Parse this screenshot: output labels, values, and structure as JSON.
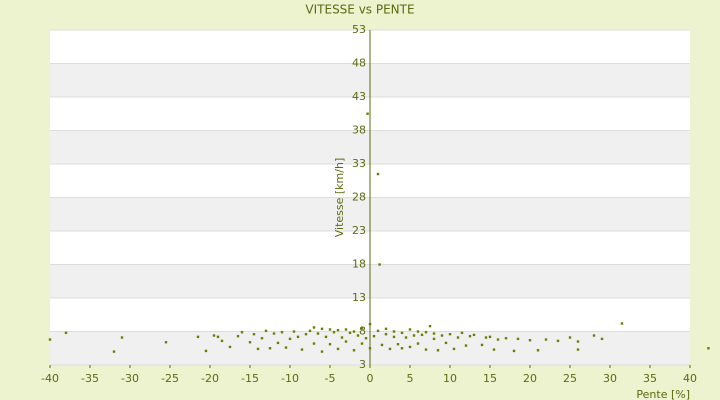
{
  "chart_data": {
    "type": "scatter",
    "title": "VITESSE vs PENTE",
    "x_label": "Pente [%]",
    "y_label": "Vitesse [km/h]",
    "color": "#6b7d00",
    "xlim": [
      -40,
      40
    ],
    "xticks": [
      -40,
      -35,
      -30,
      -25,
      -20,
      -15,
      -10,
      -5,
      0,
      5,
      10,
      15,
      20,
      25,
      30,
      35,
      40
    ],
    "ylim": [
      3,
      53
    ],
    "yticks": [
      3,
      8,
      13,
      18,
      23,
      28,
      33,
      38,
      43,
      48,
      53
    ],
    "x": [
      -40,
      -38,
      -32,
      -31,
      -25.5,
      -21.5,
      -20.5,
      -19.5,
      -19,
      -18.5,
      -17.5,
      -16.5,
      -16,
      -15,
      -14.5,
      -14,
      -13.5,
      -13,
      -12.5,
      -12,
      -11.5,
      -11,
      -10.5,
      -10,
      -9.5,
      -9,
      -8.5,
      -8,
      -7.5,
      -7,
      -7,
      -6.5,
      -6,
      -6,
      -5.5,
      -5,
      -5,
      -4.5,
      -4,
      -4,
      -3.5,
      -3,
      -3,
      -2.5,
      -2,
      -2,
      -1.5,
      -1,
      -1,
      -0.5,
      -0.3,
      0,
      0,
      0.5,
      1,
      1,
      1.2,
      1.5,
      2,
      2,
      2.5,
      3,
      3,
      3.5,
      4,
      4,
      4.5,
      5,
      5,
      5.5,
      6,
      6,
      6.5,
      7,
      7,
      7.5,
      8,
      8,
      8.5,
      9,
      9.5,
      10,
      10.5,
      11,
      11.5,
      12,
      12.5,
      13,
      14,
      14.5,
      15,
      15.5,
      16,
      17,
      18,
      18.5,
      20,
      21,
      22,
      23.5,
      25,
      26,
      26,
      28,
      29,
      31.5,
      42.3
    ],
    "values": [
      6.8,
      7.8,
      5.0,
      7.1,
      6.4,
      7.2,
      5.1,
      7.4,
      7.2,
      6.6,
      5.7,
      7.3,
      7.9,
      6.4,
      7.6,
      5.4,
      7.0,
      8.1,
      5.5,
      7.7,
      6.3,
      7.9,
      5.6,
      6.9,
      8.0,
      7.2,
      5.3,
      7.6,
      8.1,
      6.2,
      8.6,
      7.7,
      5.0,
      8.4,
      7.2,
      6.1,
      8.3,
      7.9,
      5.4,
      8.2,
      7.1,
      6.5,
      8.3,
      7.8,
      5.2,
      8.0,
      7.4,
      6.2,
      8.5,
      7.0,
      40.5,
      5.5,
      9.1,
      7.3,
      8.1,
      31.5,
      18.0,
      6.0,
      7.6,
      8.4,
      5.4,
      7.2,
      8.0,
      6.1,
      7.8,
      5.5,
      7.1,
      8.3,
      5.7,
      7.4,
      6.2,
      8.0,
      7.5,
      5.3,
      7.9,
      8.8,
      6.9,
      7.7,
      5.2,
      7.4,
      6.3,
      7.6,
      5.4,
      7.1,
      7.8,
      5.9,
      7.3,
      7.5,
      6.0,
      7.1,
      7.2,
      5.3,
      6.8,
      7.0,
      5.1,
      6.9,
      6.7,
      5.2,
      6.8,
      6.6,
      7.1,
      6.5,
      5.3,
      7.4,
      6.9,
      9.2,
      5.5
    ]
  }
}
